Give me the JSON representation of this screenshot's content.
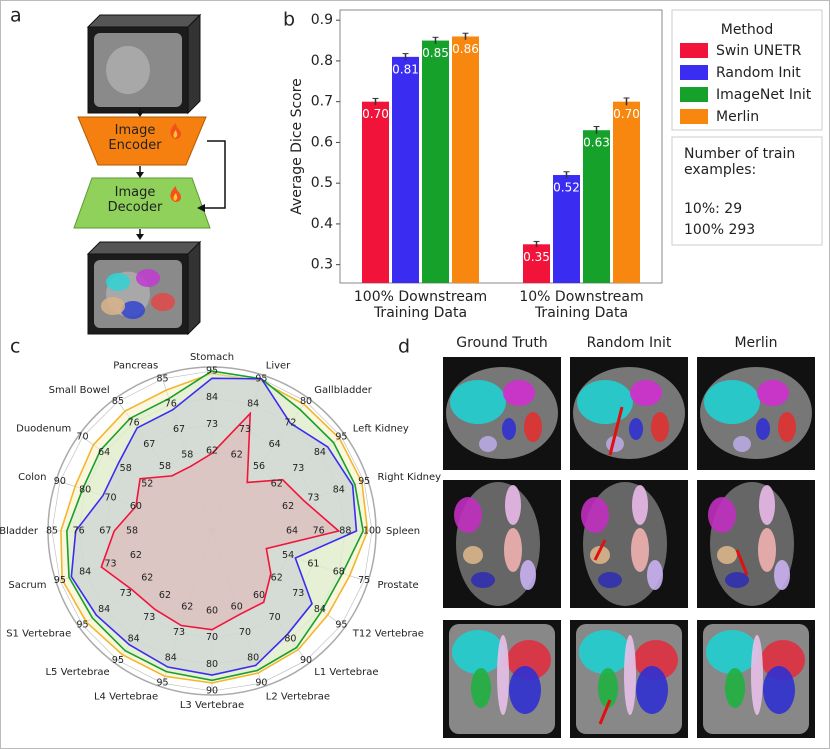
{
  "panel_labels": [
    "a",
    "b",
    "c",
    "d"
  ],
  "diagram": {
    "encoder": "Image Encoder",
    "decoder": "Image Decoder"
  },
  "chart_data": [
    {
      "type": "bar",
      "categories": [
        "100% Downstream Training Data",
        "10% Downstream Training Data"
      ],
      "ylabel": "Average Dice Score",
      "ylim": [
        0.255,
        0.925
      ],
      "yticks": [
        0.3,
        0.4,
        0.5,
        0.6,
        0.7,
        0.8,
        0.9
      ],
      "legend_title": "Method",
      "legend": "right",
      "series": [
        {
          "name": "Swin UNETR",
          "color": "#f2133a",
          "values": [
            0.7,
            0.35
          ],
          "value_labels": [
            "0.70",
            "0.35"
          ],
          "errors": [
            0.008,
            0.007
          ]
        },
        {
          "name": "Random Init",
          "color": "#3b2cf2",
          "values": [
            0.81,
            0.52
          ],
          "value_labels": [
            "0.81",
            "0.52"
          ],
          "errors": [
            0.008,
            0.008
          ]
        },
        {
          "name": "ImageNet Init",
          "color": "#16a12a",
          "values": [
            0.85,
            0.63
          ],
          "value_labels": [
            "0.85",
            "0.63"
          ],
          "errors": [
            0.008,
            0.009
          ]
        },
        {
          "name": "Merlin",
          "color": "#f7870f",
          "values": [
            0.86,
            0.7
          ],
          "value_labels": [
            "0.86",
            "0.70"
          ],
          "errors": [
            0.008,
            0.009
          ]
        }
      ],
      "note": {
        "title": "Number of train examples:",
        "lines": [
          "10%: 29",
          "100% 293"
        ]
      }
    },
    {
      "type": "radar",
      "axes": [
        {
          "name": "Stomach",
          "rlim": [
            29,
            95
          ],
          "ticks": [
            62,
            73,
            84,
            95
          ]
        },
        {
          "name": "Liver",
          "rlim": [
            29,
            95
          ],
          "ticks": [
            62,
            73,
            84,
            95
          ]
        },
        {
          "name": "Gallbladder",
          "rlim": [
            32,
            80
          ],
          "ticks": [
            56,
            64,
            72,
            80
          ]
        },
        {
          "name": "Left Kidney",
          "rlim": [
            29,
            95
          ],
          "ticks": [
            62,
            73,
            84,
            95
          ]
        },
        {
          "name": "Right Kidney",
          "rlim": [
            29,
            95
          ],
          "ticks": [
            62,
            73,
            84,
            95
          ]
        },
        {
          "name": "Spleen",
          "rlim": [
            28,
            100
          ],
          "ticks": [
            64,
            76,
            88,
            100
          ]
        },
        {
          "name": "Prostate",
          "rlim": [
            33,
            75
          ],
          "ticks": [
            54,
            61,
            68,
            75
          ]
        },
        {
          "name": "T12 Vertebrae",
          "rlim": [
            29,
            95
          ],
          "ticks": [
            62,
            73,
            84,
            95
          ]
        },
        {
          "name": "L1 Vertebrae",
          "rlim": [
            30,
            90
          ],
          "ticks": [
            60,
            70,
            80,
            90
          ]
        },
        {
          "name": "L2 Vertebrae",
          "rlim": [
            30,
            90
          ],
          "ticks": [
            60,
            70,
            80,
            90
          ]
        },
        {
          "name": "L3 Vertebrae",
          "rlim": [
            30,
            90
          ],
          "ticks": [
            60,
            70,
            80,
            90
          ]
        },
        {
          "name": "L4 Vertebrae",
          "rlim": [
            29,
            95
          ],
          "ticks": [
            62,
            73,
            84,
            95
          ]
        },
        {
          "name": "L5 Vertebrae",
          "rlim": [
            29,
            95
          ],
          "ticks": [
            62,
            73,
            84,
            95
          ]
        },
        {
          "name": "S1 Vertebrae",
          "rlim": [
            29,
            95
          ],
          "ticks": [
            62,
            73,
            84,
            95
          ]
        },
        {
          "name": "Sacrum",
          "rlim": [
            29,
            95
          ],
          "ticks": [
            62,
            73,
            84,
            95
          ]
        },
        {
          "name": "Urinary Bladder",
          "rlim": [
            31,
            85
          ],
          "ticks": [
            58,
            67,
            76,
            85
          ]
        },
        {
          "name": "Colon",
          "rlim": [
            30,
            90
          ],
          "ticks": [
            60,
            70,
            80,
            90
          ]
        },
        {
          "name": "Duodenum",
          "rlim": [
            34,
            70
          ],
          "ticks": [
            52,
            58,
            64,
            70
          ]
        },
        {
          "name": "Small Bowel",
          "rlim": [
            31,
            85
          ],
          "ticks": [
            58,
            67,
            76,
            85
          ]
        },
        {
          "name": "Pancreas",
          "rlim": [
            31,
            85
          ],
          "ticks": [
            58,
            67,
            76,
            85
          ]
        }
      ],
      "series": [
        {
          "name": "Merlin",
          "color": "#f2b630",
          "fill": "#f7f0c4",
          "values": [
            94,
            94,
            79,
            94,
            94,
            98,
            71,
            88,
            85,
            86,
            87,
            92,
            92,
            93,
            94,
            82,
            84,
            67,
            81,
            81
          ]
        },
        {
          "name": "ImageNet Init",
          "color": "#16a12a",
          "fill": "#d6ebcc",
          "values": [
            95,
            95,
            77,
            91,
            91,
            96,
            69,
            85,
            84,
            85,
            86,
            90,
            90,
            90,
            91,
            80,
            81,
            65,
            78,
            78
          ]
        },
        {
          "name": "Random Init",
          "color": "#3b2cf2",
          "fill": "#c4ccd6",
          "values": [
            92,
            95,
            72,
            88,
            90,
            93,
            56,
            80,
            78,
            83,
            84,
            88,
            87,
            88,
            90,
            77,
            73,
            60,
            74,
            74
          ]
        },
        {
          "name": "Swin UNETR",
          "color": "#f2133a",
          "fill": "#e2b4b4",
          "values": [
            61,
            80,
            50,
            65,
            69,
            85,
            48,
            59,
            63,
            63,
            67,
            70,
            69,
            70,
            77,
            64,
            60,
            54,
            54,
            54
          ]
        }
      ]
    }
  ],
  "image_grid": {
    "columns": [
      "Ground Truth",
      "Random Init",
      "Merlin"
    ]
  }
}
